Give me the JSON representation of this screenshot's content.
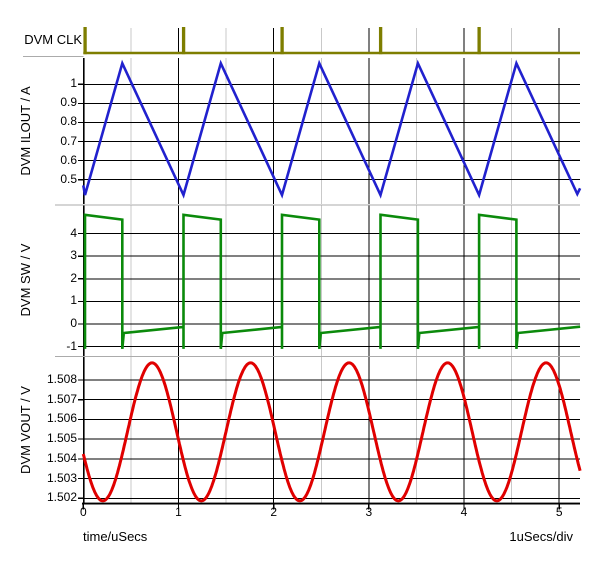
{
  "window": {
    "background": "#FFFFFF"
  },
  "axis": {
    "xlabel": "time/uSecs",
    "scale_label": "1uSecs/div",
    "xlim": [
      0,
      5.22
    ],
    "xticks": [
      {
        "t": 0,
        "label": "0"
      },
      {
        "t": 1,
        "label": "1"
      },
      {
        "t": 2,
        "label": "2"
      },
      {
        "t": 3,
        "label": "3"
      },
      {
        "t": 4,
        "label": "4"
      },
      {
        "t": 5,
        "label": "5"
      }
    ],
    "xminor": [
      0.5,
      1.5,
      2.5,
      3.5,
      4.5
    ],
    "grid_major_color": "#000000",
    "grid_minor_color": "#C9C9C9",
    "border_color": "#ABABAB"
  },
  "chart_data": [
    {
      "type": "digital",
      "name": "DVM CLK",
      "color": "#7E7E00",
      "pulse_times": [
        0.018,
        1.053,
        2.088,
        3.123,
        4.158
      ],
      "pulse_width_us": 0.035
    },
    {
      "type": "line",
      "name": "DVM ILOUT / A",
      "color": "#2121CE",
      "ylim": [
        0.37,
        1.14
      ],
      "yticks": [
        {
          "v": 1.0,
          "label": "1"
        },
        {
          "v": 0.9,
          "label": "0.9"
        },
        {
          "v": 0.8,
          "label": "0.8"
        },
        {
          "v": 0.7,
          "label": "0.7"
        },
        {
          "v": 0.6,
          "label": "0.6"
        },
        {
          "v": 0.5,
          "label": "0.5"
        }
      ],
      "points": [
        [
          0,
          0.47
        ],
        [
          0.018,
          0.42
        ],
        [
          0.41,
          1.11
        ],
        [
          1.053,
          0.42
        ],
        [
          1.445,
          1.11
        ],
        [
          2.088,
          0.42
        ],
        [
          2.48,
          1.11
        ],
        [
          3.123,
          0.42
        ],
        [
          3.515,
          1.11
        ],
        [
          4.158,
          0.42
        ],
        [
          4.55,
          1.11
        ],
        [
          5.19,
          0.425
        ],
        [
          5.22,
          0.455
        ]
      ]
    },
    {
      "type": "line",
      "name": "DVM SW / V",
      "color": "#0B8A0B",
      "ylim": [
        -1.4,
        5.2
      ],
      "yticks": [
        {
          "v": 4,
          "label": "4"
        },
        {
          "v": 3,
          "label": "3"
        },
        {
          "v": 2,
          "label": "2"
        },
        {
          "v": 1,
          "label": "1"
        },
        {
          "v": 0,
          "label": "0"
        },
        {
          "v": -1,
          "label": "-1"
        }
      ],
      "points": [
        [
          0.018,
          -1.1
        ],
        [
          0.018,
          4.83
        ],
        [
          0.41,
          4.62
        ],
        [
          0.41,
          -1.1
        ],
        [
          0.425,
          -0.4
        ],
        [
          1.053,
          -0.13
        ],
        [
          1.053,
          -1.1
        ],
        [
          1.053,
          4.83
        ],
        [
          1.445,
          4.62
        ],
        [
          1.445,
          -1.1
        ],
        [
          1.46,
          -0.4
        ],
        [
          2.088,
          -0.13
        ],
        [
          2.088,
          -1.1
        ],
        [
          2.088,
          4.83
        ],
        [
          2.48,
          4.62
        ],
        [
          2.48,
          -1.1
        ],
        [
          2.495,
          -0.4
        ],
        [
          3.123,
          -0.13
        ],
        [
          3.123,
          -1.1
        ],
        [
          3.123,
          4.83
        ],
        [
          3.515,
          4.62
        ],
        [
          3.515,
          -1.1
        ],
        [
          3.53,
          -0.4
        ],
        [
          4.158,
          -0.13
        ],
        [
          4.158,
          -1.1
        ],
        [
          4.158,
          4.83
        ],
        [
          4.55,
          4.62
        ],
        [
          4.55,
          -1.1
        ],
        [
          4.565,
          -0.4
        ],
        [
          5.22,
          -0.12
        ]
      ]
    },
    {
      "type": "line",
      "name": "DVM VOUT / V",
      "color": "#E00000",
      "ylim": [
        1.5017,
        1.5091
      ],
      "yticks": [
        {
          "v": 1.508,
          "label": "1.508"
        },
        {
          "v": 1.507,
          "label": "1.507"
        },
        {
          "v": 1.506,
          "label": "1.506"
        },
        {
          "v": 1.505,
          "label": "1.505"
        },
        {
          "v": 1.504,
          "label": "1.504"
        },
        {
          "v": 1.503,
          "label": "1.503"
        },
        {
          "v": 1.502,
          "label": "1.502"
        }
      ],
      "waveform": {
        "shape": "sine",
        "mid": 1.50537,
        "amplitude": 0.0035,
        "period": 1.035,
        "t_of_min": 0.205
      }
    }
  ]
}
